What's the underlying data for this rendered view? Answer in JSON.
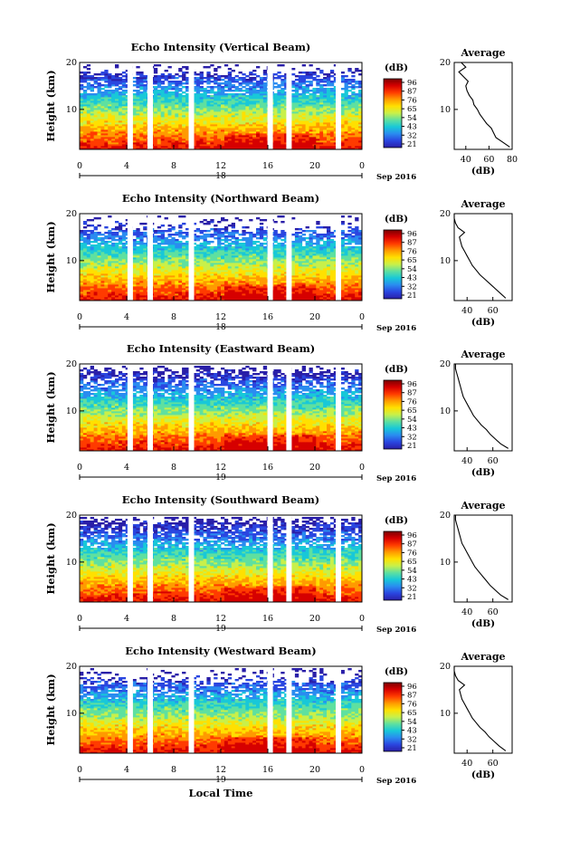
{
  "figure": {
    "ylabel": "Height (km)",
    "xlabel": "Local Time",
    "date_suffix": "Sep 2016",
    "colorbar_unit": "(dB)",
    "avg_title": "Average",
    "avg_xlabel": "(dB)"
  },
  "colorbar": {
    "ticks": [
      "96",
      "87",
      "76",
      "65",
      "54",
      "43",
      "32",
      "21"
    ],
    "colors": [
      "#7b0000",
      "#d60000",
      "#ff3b00",
      "#ff9a00",
      "#ffe000",
      "#c8f04a",
      "#5fe0a0",
      "#18c8d8",
      "#2a8cf0",
      "#2a46e0",
      "#2a1fa8"
    ]
  },
  "chart_data": [
    {
      "type": "heatmap",
      "title": "Echo Intensity (Vertical Beam)",
      "xticks": [
        "0",
        "4",
        "8",
        "12",
        "16",
        "20",
        "0"
      ],
      "xlim": [
        0,
        24
      ],
      "yticks": [
        "20",
        "10"
      ],
      "ylim": [
        1.5,
        20
      ],
      "day_label": "18",
      "gaps_hours": [
        4.3,
        6.0,
        9.5,
        16.2,
        17.8,
        22.0
      ],
      "echo_top_km": 17.5,
      "avg_profile": {
        "xticks": [
          "40",
          "60",
          "80"
        ],
        "xlim": [
          30,
          80
        ],
        "height_km": [
          2,
          3,
          4,
          5,
          6,
          7,
          8,
          9,
          10,
          11,
          12,
          13,
          14,
          15,
          16,
          17,
          18,
          19,
          20
        ],
        "db": [
          78,
          72,
          66,
          64,
          62,
          58,
          55,
          52,
          50,
          47,
          46,
          43,
          41,
          40,
          42,
          38,
          34,
          40,
          36
        ]
      }
    },
    {
      "type": "heatmap",
      "title": "Echo Intensity (Northward Beam)",
      "xticks": [
        "0",
        "4",
        "8",
        "12",
        "16",
        "20",
        "0"
      ],
      "xlim": [
        0,
        24
      ],
      "yticks": [
        "20",
        "10"
      ],
      "ylim": [
        1.5,
        20
      ],
      "day_label": "18",
      "gaps_hours": [
        4.3,
        6.0,
        9.5,
        16.2,
        17.8,
        22.0
      ],
      "echo_top_km": 16.5,
      "avg_profile": {
        "xticks": [
          "40",
          "60"
        ],
        "xlim": [
          30,
          75
        ],
        "height_km": [
          2,
          3,
          4,
          5,
          6,
          7,
          8,
          9,
          10,
          11,
          12,
          13,
          14,
          15,
          16,
          17,
          18,
          19,
          20
        ],
        "db": [
          70,
          66,
          62,
          58,
          54,
          50,
          47,
          44,
          42,
          40,
          38,
          36,
          35,
          34,
          38,
          33,
          31,
          30,
          30
        ]
      }
    },
    {
      "type": "heatmap",
      "title": "Echo Intensity (Eastward Beam)",
      "xticks": [
        "0",
        "4",
        "8",
        "12",
        "16",
        "20",
        "0"
      ],
      "xlim": [
        0,
        24
      ],
      "yticks": [
        "20",
        "10"
      ],
      "ylim": [
        1.5,
        20
      ],
      "day_label": "19",
      "gaps_hours": [
        4.3,
        6.0,
        9.5,
        16.2,
        17.8,
        22.0
      ],
      "echo_top_km": 18.5,
      "avg_profile": {
        "xticks": [
          "40",
          "60"
        ],
        "xlim": [
          30,
          75
        ],
        "height_km": [
          2,
          3,
          4,
          5,
          6,
          7,
          8,
          9,
          10,
          11,
          12,
          13,
          14,
          15,
          16,
          17,
          18,
          19,
          20
        ],
        "db": [
          72,
          66,
          62,
          58,
          55,
          51,
          48,
          45,
          43,
          41,
          39,
          37,
          36,
          35,
          34,
          33,
          32,
          31,
          31
        ]
      }
    },
    {
      "type": "heatmap",
      "title": "Echo Intensity (Southward Beam)",
      "xticks": [
        "0",
        "4",
        "8",
        "12",
        "16",
        "20",
        "0"
      ],
      "xlim": [
        0,
        24
      ],
      "yticks": [
        "20",
        "10"
      ],
      "ylim": [
        1.5,
        20
      ],
      "day_label": "19",
      "gaps_hours": [
        4.3,
        6.0,
        9.5,
        16.2,
        17.8,
        22.0
      ],
      "echo_top_km": 19.0,
      "avg_profile": {
        "xticks": [
          "40",
          "60"
        ],
        "xlim": [
          30,
          75
        ],
        "height_km": [
          2,
          3,
          4,
          5,
          6,
          7,
          8,
          9,
          10,
          11,
          12,
          13,
          14,
          15,
          16,
          17,
          18,
          19,
          20
        ],
        "db": [
          72,
          66,
          62,
          58,
          55,
          52,
          49,
          46,
          44,
          42,
          40,
          38,
          36,
          35,
          34,
          33,
          32,
          31,
          31
        ]
      }
    },
    {
      "type": "heatmap",
      "title": "Echo Intensity (Westward Beam)",
      "xticks": [
        "0",
        "4",
        "8",
        "12",
        "16",
        "20",
        "0"
      ],
      "xlim": [
        0,
        24
      ],
      "yticks": [
        "20",
        "10"
      ],
      "ylim": [
        1.5,
        20
      ],
      "day_label": "19",
      "gaps_hours": [
        4.3,
        6.0,
        9.5,
        16.2,
        17.8,
        22.0
      ],
      "echo_top_km": 17.0,
      "avg_profile": {
        "xticks": [
          "40",
          "60"
        ],
        "xlim": [
          30,
          75
        ],
        "height_km": [
          2,
          3,
          4,
          5,
          6,
          7,
          8,
          9,
          10,
          11,
          12,
          13,
          14,
          15,
          16,
          17,
          18,
          19,
          20
        ],
        "db": [
          70,
          65,
          61,
          57,
          54,
          50,
          47,
          44,
          42,
          40,
          38,
          36,
          35,
          34,
          38,
          33,
          31,
          30,
          30
        ]
      }
    }
  ]
}
